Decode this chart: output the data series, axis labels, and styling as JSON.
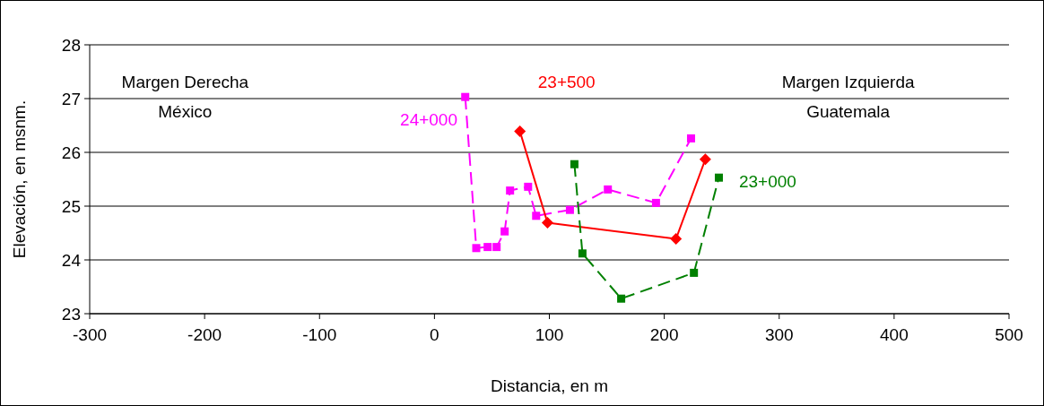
{
  "chart_data": {
    "type": "line",
    "xlabel": "Distancia, en m",
    "ylabel": "Elevación, en msnm.",
    "xlim": [
      -300,
      500
    ],
    "xticks": [
      -300,
      -200,
      -100,
      0,
      100,
      200,
      300,
      400,
      500
    ],
    "ylim": [
      23,
      28
    ],
    "yticks": [
      23,
      24,
      25,
      26,
      27,
      28
    ],
    "grid": "y",
    "annotations": [
      "Margen Derecha",
      "México",
      "Margen Izquierda",
      "Guatemala"
    ],
    "series": [
      {
        "name": "24+000",
        "color": "#ff00ff",
        "marker": "square",
        "line_style": "dashed",
        "x": [
          26.8,
          36.4,
          46.3,
          54.1,
          61.1,
          65.8,
          81.5,
          88.5,
          117.9,
          150.9,
          192.8,
          223.3
        ],
        "values": [
          27.03,
          24.22,
          24.24,
          24.24,
          24.53,
          25.29,
          25.36,
          24.82,
          24.93,
          25.31,
          25.06,
          26.26
        ]
      },
      {
        "name": "23+500",
        "color": "#ff0000",
        "marker": "diamond",
        "line_style": "solid",
        "x": [
          74.4,
          98.4,
          210.2,
          235.7
        ],
        "values": [
          26.39,
          24.69,
          24.39,
          25.87
        ]
      },
      {
        "name": "23+000",
        "color": "#008000",
        "marker": "square",
        "line_style": "dashed",
        "x": [
          121.8,
          128.8,
          162.5,
          225.8,
          247.5
        ],
        "values": [
          25.78,
          24.12,
          23.28,
          23.76,
          25.53
        ]
      }
    ]
  }
}
